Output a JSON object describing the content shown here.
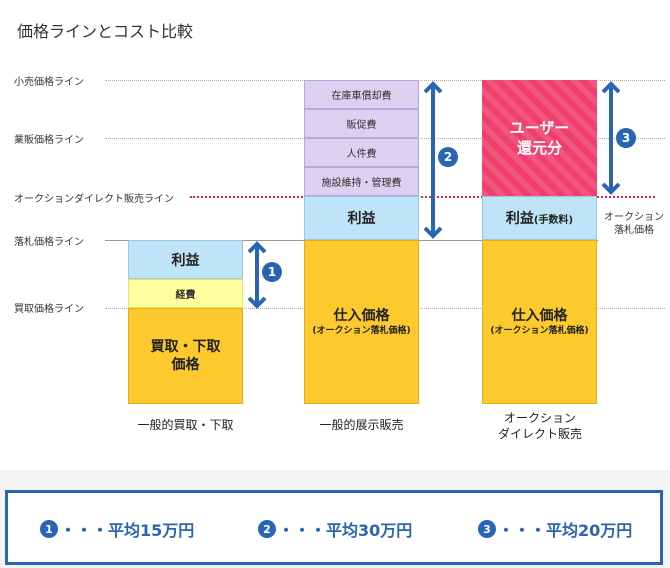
{
  "title": "価格ラインとコスト比較",
  "levels": {
    "retail": "小売価格ライン",
    "wholesale": "業販価格ライン",
    "auction_direct": "オークションダイレクト販売ライン",
    "winning_bid": "落札価格ライン",
    "buyback": "買取価格ライン"
  },
  "col1": {
    "profit": "利益",
    "expense": "経費",
    "price_line1": "買取・下取",
    "price_line2": "価格",
    "caption": "一般的買取・下取"
  },
  "col2": {
    "items": [
      "在庫車償却費",
      "販促費",
      "人件費",
      "施設維持・管理費"
    ],
    "profit": "利益",
    "purchase_main": "仕入価格",
    "purchase_sub": "(オークション落札価格)",
    "caption": "一般的展示販売"
  },
  "col3": {
    "user_line1": "ユーザー",
    "user_line2": "還元分",
    "profit": "利益",
    "fee": "(手数料)",
    "purchase_main": "仕入価格",
    "purchase_sub": "(オークション落札価格)",
    "caption_line1": "オークション",
    "caption_line2": "ダイレクト販売",
    "note_line1": "オークション",
    "note_line2": "落札価格"
  },
  "badges": [
    "1",
    "2",
    "3"
  ],
  "summary": [
    {
      "num": "1",
      "text": "・・・平均15万円"
    },
    {
      "num": "2",
      "text": "・・・平均30万円"
    },
    {
      "num": "3",
      "text": "・・・平均20万円"
    }
  ],
  "colors": {
    "accent_blue": "#2a64b4",
    "profit_blue": "#bfe3f7",
    "cost_purple": "#dcd0f0",
    "price_orange": "#fdca2e",
    "expense_yellow": "#ffffa0",
    "user_red": "#ee3f6f"
  }
}
